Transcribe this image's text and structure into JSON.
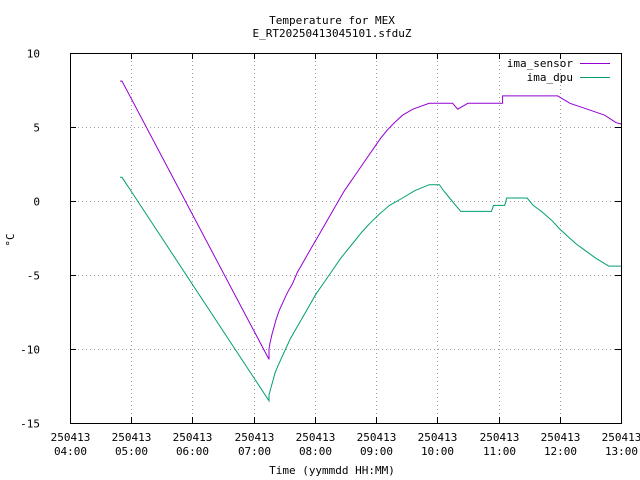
{
  "chart_data": {
    "type": "line",
    "title": "Temperature for MEX",
    "subtitle": "E_RT20250413045101.sfduZ",
    "xlabel": "Time (yymmdd HH:MM)",
    "ylabel": "°C",
    "xlim": [
      "2025-04-13 04:00",
      "2025-04-13 13:00"
    ],
    "ylim": [
      -15,
      10
    ],
    "yticks": [
      -15,
      -10,
      -5,
      0,
      5,
      10
    ],
    "xticks": [
      {
        "t": "2025-04-13 04:00",
        "date": "250413",
        "time": "04:00"
      },
      {
        "t": "2025-04-13 05:00",
        "date": "250413",
        "time": "05:00"
      },
      {
        "t": "2025-04-13 06:00",
        "date": "250413",
        "time": "06:00"
      },
      {
        "t": "2025-04-13 07:00",
        "date": "250413",
        "time": "07:00"
      },
      {
        "t": "2025-04-13 08:00",
        "date": "250413",
        "time": "08:00"
      },
      {
        "t": "2025-04-13 09:00",
        "date": "250413",
        "time": "09:00"
      },
      {
        "t": "2025-04-13 10:00",
        "date": "250413",
        "time": "10:00"
      },
      {
        "t": "2025-04-13 11:00",
        "date": "250413",
        "time": "11:00"
      },
      {
        "t": "2025-04-13 12:00",
        "date": "250413",
        "time": "12:00"
      },
      {
        "t": "2025-04-13 13:00",
        "date": "250413",
        "time": "13:00"
      }
    ],
    "grid": true,
    "legend_position": "top-right",
    "series": [
      {
        "name": "ima_sensor",
        "color": "#9400d3",
        "points": [
          [
            "2025-04-13 04:49",
            8.1
          ],
          [
            "2025-04-13 04:51",
            8.1
          ],
          [
            "2025-04-13 07:15",
            -10.7
          ],
          [
            "2025-04-13 07:15",
            -10.0
          ],
          [
            "2025-04-13 07:16",
            -9.6
          ],
          [
            "2025-04-13 07:18",
            -9.0
          ],
          [
            "2025-04-13 07:20",
            -8.5
          ],
          [
            "2025-04-13 07:22",
            -8.0
          ],
          [
            "2025-04-13 07:25",
            -7.4
          ],
          [
            "2025-04-13 07:29",
            -6.8
          ],
          [
            "2025-04-13 07:33",
            -6.2
          ],
          [
            "2025-04-13 07:38",
            -5.6
          ],
          [
            "2025-04-13 07:43",
            -4.8
          ],
          [
            "2025-04-13 07:48",
            -4.2
          ],
          [
            "2025-04-13 07:53",
            -3.6
          ],
          [
            "2025-04-13 07:58",
            -3.0
          ],
          [
            "2025-04-13 08:03",
            -2.4
          ],
          [
            "2025-04-13 08:08",
            -1.8
          ],
          [
            "2025-04-13 08:13",
            -1.2
          ],
          [
            "2025-04-13 08:18",
            -0.6
          ],
          [
            "2025-04-13 08:23",
            0.0
          ],
          [
            "2025-04-13 08:28",
            0.6
          ],
          [
            "2025-04-13 08:34",
            1.2
          ],
          [
            "2025-04-13 08:40",
            1.8
          ],
          [
            "2025-04-13 08:46",
            2.4
          ],
          [
            "2025-04-13 08:52",
            3.0
          ],
          [
            "2025-04-13 08:58",
            3.6
          ],
          [
            "2025-04-13 09:04",
            4.2
          ],
          [
            "2025-04-13 09:11",
            4.8
          ],
          [
            "2025-04-13 09:18",
            5.3
          ],
          [
            "2025-04-13 09:26",
            5.8
          ],
          [
            "2025-04-13 09:36",
            6.2
          ],
          [
            "2025-04-13 09:52",
            6.6
          ],
          [
            "2025-04-13 10:15",
            6.6
          ],
          [
            "2025-04-13 10:20",
            6.2
          ],
          [
            "2025-04-13 10:30",
            6.6
          ],
          [
            "2025-04-13 11:04",
            6.6
          ],
          [
            "2025-04-13 11:04",
            7.1
          ],
          [
            "2025-04-13 11:58",
            7.1
          ],
          [
            "2025-04-13 12:10",
            6.6
          ],
          [
            "2025-04-13 12:27",
            6.2
          ],
          [
            "2025-04-13 12:44",
            5.8
          ],
          [
            "2025-04-13 12:55",
            5.3
          ],
          [
            "2025-04-13 13:00",
            5.2
          ]
        ]
      },
      {
        "name": "ima_dpu",
        "color": "#009e73",
        "points": [
          [
            "2025-04-13 04:49",
            1.6
          ],
          [
            "2025-04-13 04:51",
            1.6
          ],
          [
            "2025-04-13 07:15",
            -13.5
          ],
          [
            "2025-04-13 07:15",
            -13.1
          ],
          [
            "2025-04-13 07:17",
            -12.6
          ],
          [
            "2025-04-13 07:19",
            -12.1
          ],
          [
            "2025-04-13 07:21",
            -11.6
          ],
          [
            "2025-04-13 07:24",
            -11.1
          ],
          [
            "2025-04-13 07:28",
            -10.5
          ],
          [
            "2025-04-13 07:32",
            -9.9
          ],
          [
            "2025-04-13 07:36",
            -9.3
          ],
          [
            "2025-04-13 07:41",
            -8.7
          ],
          [
            "2025-04-13 07:46",
            -8.1
          ],
          [
            "2025-04-13 07:51",
            -7.5
          ],
          [
            "2025-04-13 07:56",
            -6.9
          ],
          [
            "2025-04-13 08:01",
            -6.3
          ],
          [
            "2025-04-13 08:07",
            -5.7
          ],
          [
            "2025-04-13 08:13",
            -5.1
          ],
          [
            "2025-04-13 08:19",
            -4.5
          ],
          [
            "2025-04-13 08:25",
            -3.9
          ],
          [
            "2025-04-13 08:32",
            -3.3
          ],
          [
            "2025-04-13 08:39",
            -2.7
          ],
          [
            "2025-04-13 08:46",
            -2.1
          ],
          [
            "2025-04-13 08:54",
            -1.5
          ],
          [
            "2025-04-13 09:03",
            -0.9
          ],
          [
            "2025-04-13 09:13",
            -0.3
          ],
          [
            "2025-04-13 09:26",
            0.2
          ],
          [
            "2025-04-13 09:38",
            0.7
          ],
          [
            "2025-04-13 09:52",
            1.1
          ],
          [
            "2025-04-13 10:02",
            1.1
          ],
          [
            "2025-04-13 10:06",
            0.7
          ],
          [
            "2025-04-13 10:12",
            0.2
          ],
          [
            "2025-04-13 10:18",
            -0.3
          ],
          [
            "2025-04-13 10:23",
            -0.7
          ],
          [
            "2025-04-13 10:53",
            -0.7
          ],
          [
            "2025-04-13 10:55",
            -0.3
          ],
          [
            "2025-04-13 11:06",
            -0.3
          ],
          [
            "2025-04-13 11:08",
            0.2
          ],
          [
            "2025-04-13 11:28",
            0.2
          ],
          [
            "2025-04-13 11:34",
            -0.3
          ],
          [
            "2025-04-13 11:42",
            -0.7
          ],
          [
            "2025-04-13 11:52",
            -1.3
          ],
          [
            "2025-04-13 12:00",
            -1.9
          ],
          [
            "2025-04-13 12:08",
            -2.4
          ],
          [
            "2025-04-13 12:16",
            -2.9
          ],
          [
            "2025-04-13 12:26",
            -3.4
          ],
          [
            "2025-04-13 12:36",
            -3.9
          ],
          [
            "2025-04-13 12:48",
            -4.4
          ],
          [
            "2025-04-13 13:00",
            -4.4
          ]
        ]
      }
    ]
  }
}
